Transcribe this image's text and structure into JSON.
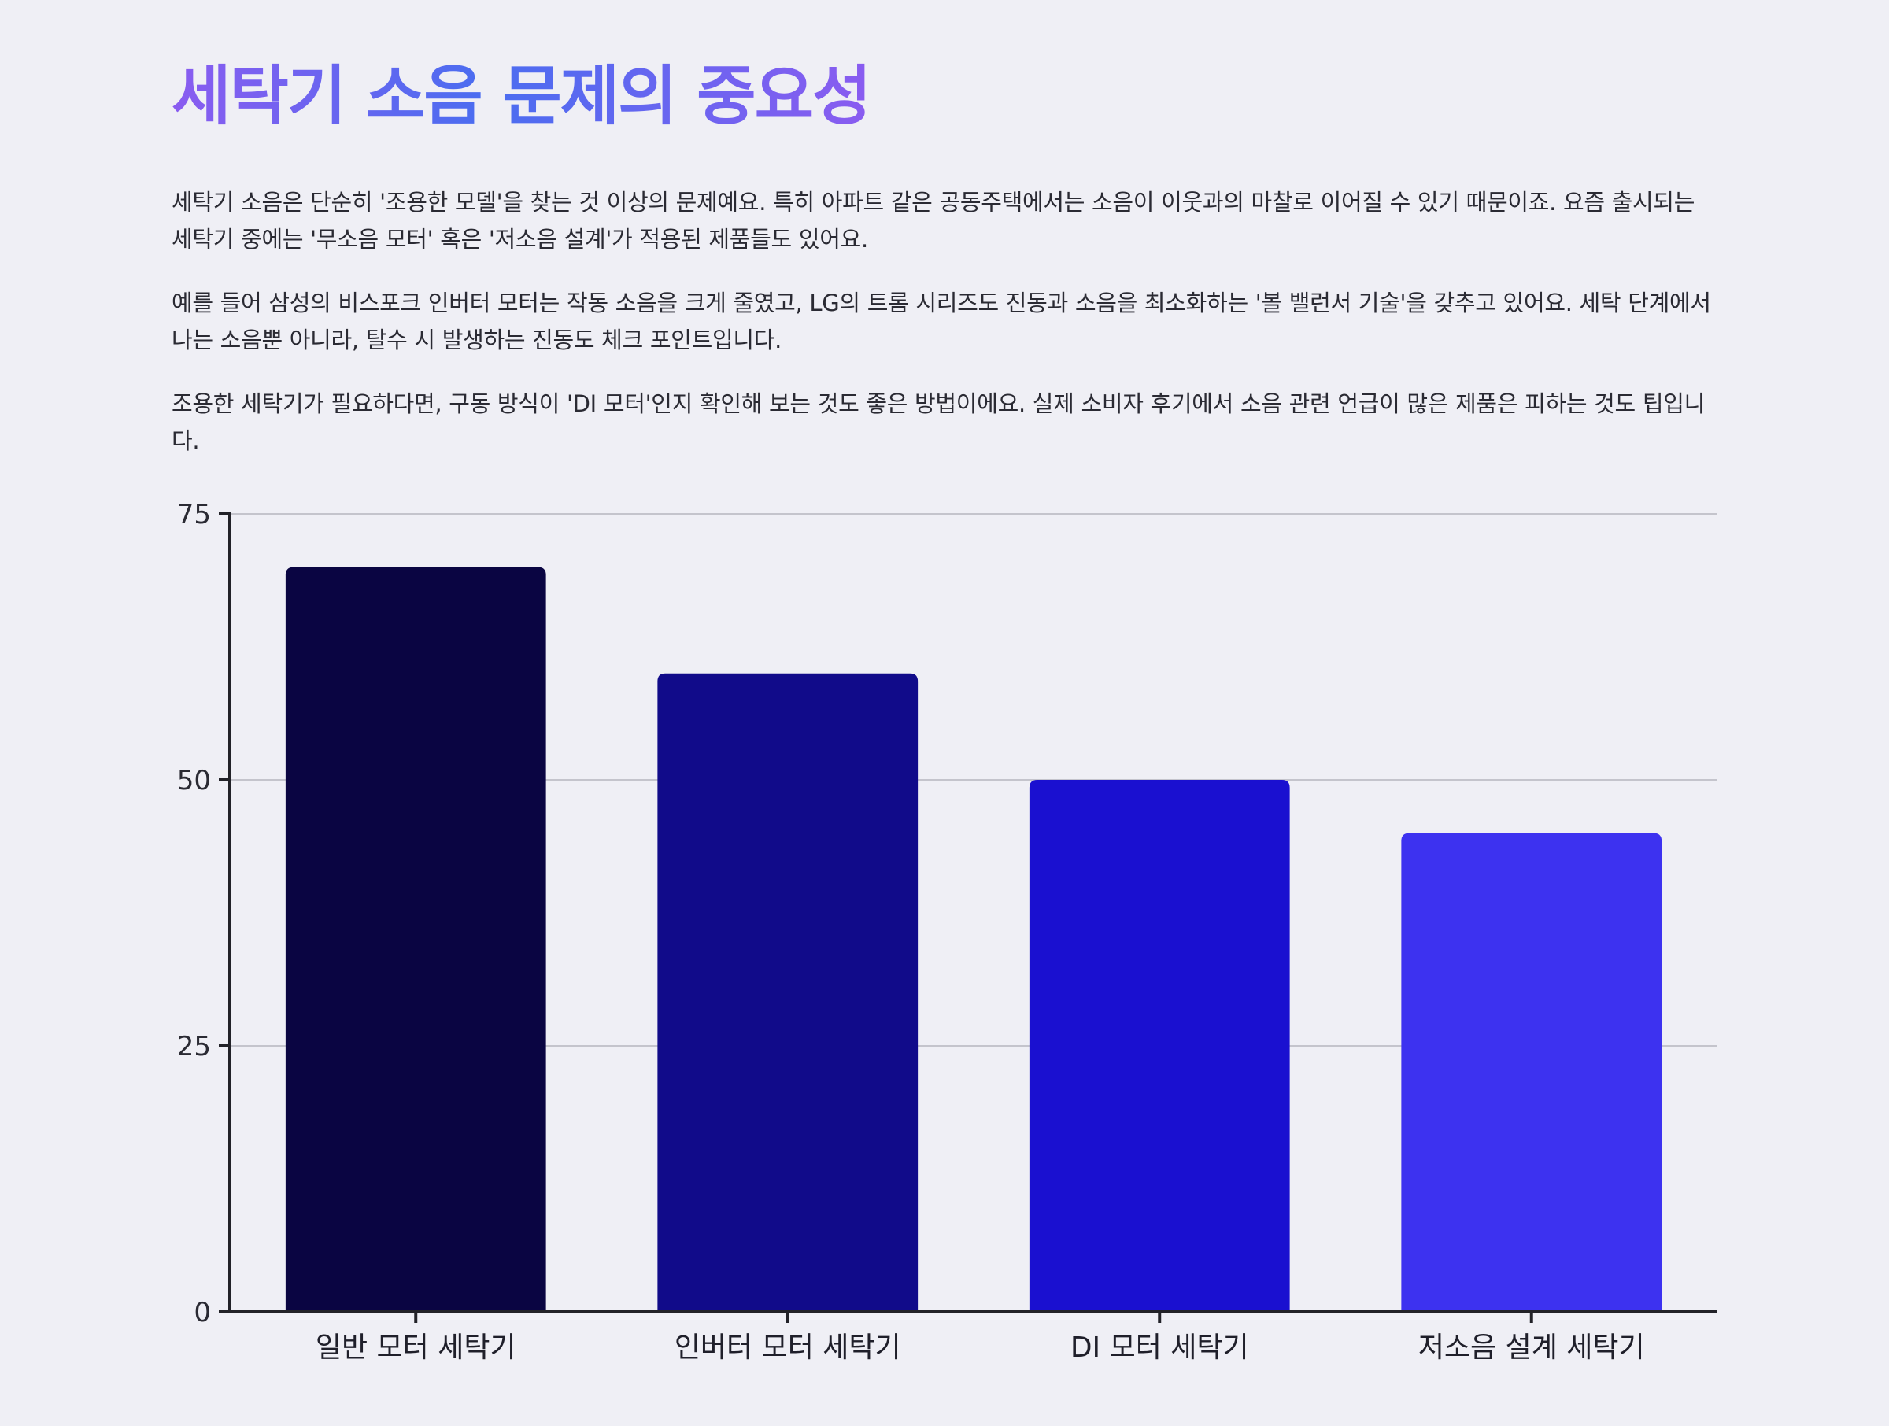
{
  "page": {
    "title": "세탁기 소음 문제의 중요성",
    "paragraphs": [
      "세탁기 소음은 단순히 '조용한 모델'을 찾는 것 이상의 문제예요. 특히 아파트 같은 공동주택에서는 소음이 이웃과의 마찰로 이어질 수 있기 때문이죠. 요즘 출시되는 세탁기 중에는 '무소음 모터' 혹은 '저소음 설계'가 적용된 제품들도 있어요.",
      "예를 들어 삼성의 비스포크 인버터 모터는 작동 소음을 크게 줄였고, LG의 트롬 시리즈도 진동과 소음을 최소화하는 '볼 밸런서 기술'을 갖추고 있어요. 세탁 단계에서 나는 소음뿐 아니라, 탈수 시 발생하는 진동도 체크 포인트입니다.",
      "조용한 세탁기가 필요하다면, 구동 방식이 'DI 모터'인지 확인해 보는 것도 좋은 방법이에요. 실제 소비자 후기에서 소음 관련 언급이 많은 제품은 피하는 것도 팁입니다."
    ]
  },
  "colors": {
    "title_gradient_start": "#8a5cf0",
    "title_gradient_mid": "#4a6df0",
    "background": "#efeff5",
    "axis": "#222228",
    "grid": "#c4c4cc"
  },
  "chart_data": {
    "type": "bar",
    "title": "",
    "xlabel": "",
    "ylabel": "",
    "categories": [
      "일반 모터 세탁기",
      "인버터 모터 세탁기",
      "DI 모터 세탁기",
      "저소음 설계 세탁기"
    ],
    "values": [
      70,
      60,
      50,
      45
    ],
    "colors": [
      "#0a0542",
      "#110b8a",
      "#1a10d0",
      "#3d32f0"
    ],
    "ylim": [
      0,
      75
    ],
    "yticks": [
      0,
      25,
      50,
      75
    ],
    "grid": true,
    "legend": "none"
  }
}
